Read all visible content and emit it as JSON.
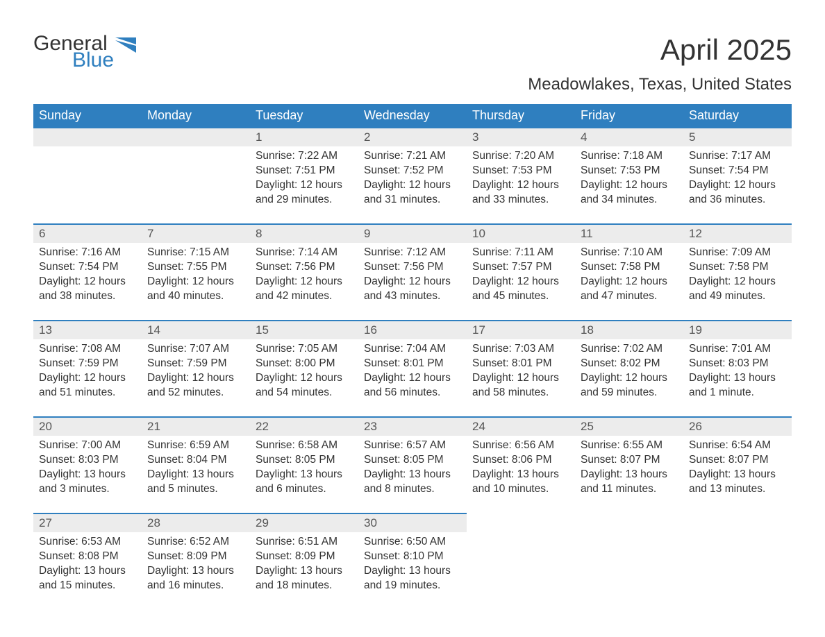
{
  "brand": {
    "part1": "General",
    "part2": "Blue",
    "general_color": "#333333",
    "blue_color": "#2f7fbf"
  },
  "title": "April 2025",
  "location": "Meadowlakes, Texas, United States",
  "colors": {
    "header_bg": "#2f7fbf",
    "header_text": "#ffffff",
    "daynum_bg": "#ececec",
    "row_border": "#2f7fbf",
    "body_text": "#333333",
    "background": "#ffffff"
  },
  "fonts": {
    "title_size": 42,
    "location_size": 24,
    "th_size": 18,
    "daynum_size": 17,
    "cell_size": 15.5
  },
  "daysOfWeek": [
    "Sunday",
    "Monday",
    "Tuesday",
    "Wednesday",
    "Thursday",
    "Friday",
    "Saturday"
  ],
  "weeks": [
    [
      null,
      null,
      {
        "n": "1",
        "sr": "Sunrise: 7:22 AM",
        "ss": "Sunset: 7:51 PM",
        "d1": "Daylight: 12 hours",
        "d2": "and 29 minutes."
      },
      {
        "n": "2",
        "sr": "Sunrise: 7:21 AM",
        "ss": "Sunset: 7:52 PM",
        "d1": "Daylight: 12 hours",
        "d2": "and 31 minutes."
      },
      {
        "n": "3",
        "sr": "Sunrise: 7:20 AM",
        "ss": "Sunset: 7:53 PM",
        "d1": "Daylight: 12 hours",
        "d2": "and 33 minutes."
      },
      {
        "n": "4",
        "sr": "Sunrise: 7:18 AM",
        "ss": "Sunset: 7:53 PM",
        "d1": "Daylight: 12 hours",
        "d2": "and 34 minutes."
      },
      {
        "n": "5",
        "sr": "Sunrise: 7:17 AM",
        "ss": "Sunset: 7:54 PM",
        "d1": "Daylight: 12 hours",
        "d2": "and 36 minutes."
      }
    ],
    [
      {
        "n": "6",
        "sr": "Sunrise: 7:16 AM",
        "ss": "Sunset: 7:54 PM",
        "d1": "Daylight: 12 hours",
        "d2": "and 38 minutes."
      },
      {
        "n": "7",
        "sr": "Sunrise: 7:15 AM",
        "ss": "Sunset: 7:55 PM",
        "d1": "Daylight: 12 hours",
        "d2": "and 40 minutes."
      },
      {
        "n": "8",
        "sr": "Sunrise: 7:14 AM",
        "ss": "Sunset: 7:56 PM",
        "d1": "Daylight: 12 hours",
        "d2": "and 42 minutes."
      },
      {
        "n": "9",
        "sr": "Sunrise: 7:12 AM",
        "ss": "Sunset: 7:56 PM",
        "d1": "Daylight: 12 hours",
        "d2": "and 43 minutes."
      },
      {
        "n": "10",
        "sr": "Sunrise: 7:11 AM",
        "ss": "Sunset: 7:57 PM",
        "d1": "Daylight: 12 hours",
        "d2": "and 45 minutes."
      },
      {
        "n": "11",
        "sr": "Sunrise: 7:10 AM",
        "ss": "Sunset: 7:58 PM",
        "d1": "Daylight: 12 hours",
        "d2": "and 47 minutes."
      },
      {
        "n": "12",
        "sr": "Sunrise: 7:09 AM",
        "ss": "Sunset: 7:58 PM",
        "d1": "Daylight: 12 hours",
        "d2": "and 49 minutes."
      }
    ],
    [
      {
        "n": "13",
        "sr": "Sunrise: 7:08 AM",
        "ss": "Sunset: 7:59 PM",
        "d1": "Daylight: 12 hours",
        "d2": "and 51 minutes."
      },
      {
        "n": "14",
        "sr": "Sunrise: 7:07 AM",
        "ss": "Sunset: 7:59 PM",
        "d1": "Daylight: 12 hours",
        "d2": "and 52 minutes."
      },
      {
        "n": "15",
        "sr": "Sunrise: 7:05 AM",
        "ss": "Sunset: 8:00 PM",
        "d1": "Daylight: 12 hours",
        "d2": "and 54 minutes."
      },
      {
        "n": "16",
        "sr": "Sunrise: 7:04 AM",
        "ss": "Sunset: 8:01 PM",
        "d1": "Daylight: 12 hours",
        "d2": "and 56 minutes."
      },
      {
        "n": "17",
        "sr": "Sunrise: 7:03 AM",
        "ss": "Sunset: 8:01 PM",
        "d1": "Daylight: 12 hours",
        "d2": "and 58 minutes."
      },
      {
        "n": "18",
        "sr": "Sunrise: 7:02 AM",
        "ss": "Sunset: 8:02 PM",
        "d1": "Daylight: 12 hours",
        "d2": "and 59 minutes."
      },
      {
        "n": "19",
        "sr": "Sunrise: 7:01 AM",
        "ss": "Sunset: 8:03 PM",
        "d1": "Daylight: 13 hours",
        "d2": "and 1 minute."
      }
    ],
    [
      {
        "n": "20",
        "sr": "Sunrise: 7:00 AM",
        "ss": "Sunset: 8:03 PM",
        "d1": "Daylight: 13 hours",
        "d2": "and 3 minutes."
      },
      {
        "n": "21",
        "sr": "Sunrise: 6:59 AM",
        "ss": "Sunset: 8:04 PM",
        "d1": "Daylight: 13 hours",
        "d2": "and 5 minutes."
      },
      {
        "n": "22",
        "sr": "Sunrise: 6:58 AM",
        "ss": "Sunset: 8:05 PM",
        "d1": "Daylight: 13 hours",
        "d2": "and 6 minutes."
      },
      {
        "n": "23",
        "sr": "Sunrise: 6:57 AM",
        "ss": "Sunset: 8:05 PM",
        "d1": "Daylight: 13 hours",
        "d2": "and 8 minutes."
      },
      {
        "n": "24",
        "sr": "Sunrise: 6:56 AM",
        "ss": "Sunset: 8:06 PM",
        "d1": "Daylight: 13 hours",
        "d2": "and 10 minutes."
      },
      {
        "n": "25",
        "sr": "Sunrise: 6:55 AM",
        "ss": "Sunset: 8:07 PM",
        "d1": "Daylight: 13 hours",
        "d2": "and 11 minutes."
      },
      {
        "n": "26",
        "sr": "Sunrise: 6:54 AM",
        "ss": "Sunset: 8:07 PM",
        "d1": "Daylight: 13 hours",
        "d2": "and 13 minutes."
      }
    ],
    [
      {
        "n": "27",
        "sr": "Sunrise: 6:53 AM",
        "ss": "Sunset: 8:08 PM",
        "d1": "Daylight: 13 hours",
        "d2": "and 15 minutes."
      },
      {
        "n": "28",
        "sr": "Sunrise: 6:52 AM",
        "ss": "Sunset: 8:09 PM",
        "d1": "Daylight: 13 hours",
        "d2": "and 16 minutes."
      },
      {
        "n": "29",
        "sr": "Sunrise: 6:51 AM",
        "ss": "Sunset: 8:09 PM",
        "d1": "Daylight: 13 hours",
        "d2": "and 18 minutes."
      },
      {
        "n": "30",
        "sr": "Sunrise: 6:50 AM",
        "ss": "Sunset: 8:10 PM",
        "d1": "Daylight: 13 hours",
        "d2": "and 19 minutes."
      },
      null,
      null,
      null
    ]
  ]
}
